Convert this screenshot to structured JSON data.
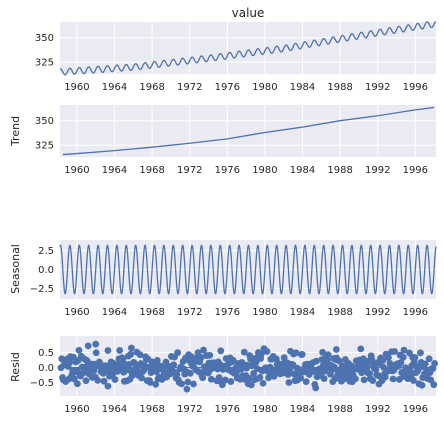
{
  "colors": {
    "panel_bg": "#eaeaf2",
    "grid": "#ffffff",
    "line": "#4c72b0",
    "text": "#262626"
  },
  "chart_data": [
    {
      "type": "line",
      "title": "value",
      "ylabel": "",
      "xlabel": "",
      "x_ticks": [
        "1960",
        "1964",
        "1968",
        "1972",
        "1976",
        "1980",
        "1984",
        "1988",
        "1992",
        "1996"
      ],
      "y_ticks": [
        325,
        350
      ],
      "xlim": [
        1958.2,
        1998.2
      ],
      "ylim": [
        313,
        366
      ],
      "grid": true,
      "trend": {
        "x": [
          1958.2,
          1966,
          1974,
          1982,
          1990,
          1998
        ],
        "y": [
          315,
          320,
          329,
          339,
          352,
          364
        ]
      },
      "seasonal_amplitude": 3.2,
      "cycle_period_years": 1
    },
    {
      "type": "line",
      "title": "",
      "ylabel": "Trend",
      "xlabel": "",
      "x_ticks": [
        "1960",
        "1964",
        "1968",
        "1972",
        "1976",
        "1980",
        "1984",
        "1988",
        "1992",
        "1996"
      ],
      "y_ticks": [
        325,
        350
      ],
      "xlim": [
        1958.2,
        1998.2
      ],
      "ylim": [
        313,
        366
      ],
      "grid": true,
      "x": [
        1958.5,
        1960,
        1964,
        1968,
        1972,
        1976,
        1980,
        1984,
        1988,
        1992,
        1996,
        1998
      ],
      "values": [
        315.5,
        316.5,
        319.5,
        323,
        327,
        331.5,
        338,
        343.5,
        350,
        355,
        361,
        363.5
      ]
    },
    {
      "type": "line",
      "title": "",
      "ylabel": "Seasonal",
      "xlabel": "",
      "x_ticks": [
        "1960",
        "1964",
        "1968",
        "1972",
        "1976",
        "1980",
        "1984",
        "1988",
        "1992",
        "1996"
      ],
      "y_ticks": [
        -2.5,
        0.0,
        2.5
      ],
      "y_tick_labels": [
        "−2.5",
        "0.0",
        "2.5"
      ],
      "xlim": [
        1958.2,
        1998.2
      ],
      "ylim": [
        -3.9,
        3.9
      ],
      "grid": true,
      "amplitude": 3.2,
      "cycle_period_years": 1
    },
    {
      "type": "scatter",
      "title": "",
      "ylabel": "Resid",
      "xlabel": "",
      "x_ticks": [
        "1960",
        "1964",
        "1968",
        "1972",
        "1976",
        "1980",
        "1984",
        "1988",
        "1992",
        "1996"
      ],
      "y_ticks": [
        -0.5,
        0.0,
        0.5
      ],
      "y_tick_labels": [
        "−0.5",
        "0.0",
        "0.5"
      ],
      "xlim": [
        1958.2,
        1998.2
      ],
      "ylim": [
        -0.95,
        1.05
      ],
      "grid": true,
      "baseline": 0,
      "points_per_year": 12,
      "outliers": [
        {
          "x": 1961.2,
          "y": 0.72
        },
        {
          "x": 1962.0,
          "y": 0.78
        },
        {
          "x": 1963.3,
          "y": -0.62
        },
        {
          "x": 1965.8,
          "y": 0.65
        },
        {
          "x": 1971.7,
          "y": -0.72
        },
        {
          "x": 1972.4,
          "y": -0.55
        },
        {
          "x": 1979.9,
          "y": 0.63
        },
        {
          "x": 1985.4,
          "y": -0.68
        },
        {
          "x": 1987.6,
          "y": 0.6
        },
        {
          "x": 1990.2,
          "y": 0.62
        },
        {
          "x": 1994.8,
          "y": 0.58
        }
      ]
    }
  ]
}
